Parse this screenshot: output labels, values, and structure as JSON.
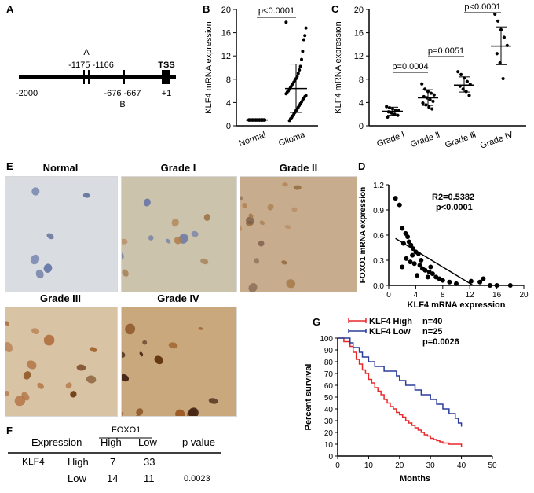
{
  "panels": {
    "A": "A",
    "B": "B",
    "C": "C",
    "D": "D",
    "E": "E",
    "F": "F",
    "G": "G"
  },
  "panel_a": {
    "site_a_label": "A",
    "site_a_range": "-1175 -1166",
    "site_b_range": "-676 -667",
    "site_b_label": "B",
    "tss_label": "TSS",
    "start_label": "-2000",
    "end_label": "+1"
  },
  "panel_e": {
    "titles": [
      "Normal",
      "Grade I",
      "Grade II",
      "Grade III",
      "Grade IV"
    ]
  },
  "panel_f": {
    "header_expression": "Expression",
    "header_group": "FOXO1",
    "header_pvalue": "p value",
    "col_high": "High",
    "col_low": "Low",
    "row_gene": "KLF4",
    "rows": [
      {
        "label": "High",
        "high": "7",
        "low": "33",
        "p": ""
      },
      {
        "label": "Low",
        "high": "14",
        "low": "11",
        "p": "0.0023"
      }
    ]
  },
  "chart_data": [
    {
      "id": "B",
      "type": "scatter",
      "ylabel": "KLF4 mRNA expression",
      "categories": [
        "Normal",
        "Glioma"
      ],
      "ylim": [
        0,
        20
      ],
      "yticks": [
        0,
        4,
        8,
        12,
        16,
        20
      ],
      "annotation": "p<0.0001",
      "series": [
        {
          "category": "Normal",
          "mean": 1.0,
          "sd_low": 1.0,
          "sd_high": 1.0,
          "points": [
            1,
            1,
            1,
            1,
            1,
            1,
            1,
            1,
            1,
            1,
            1,
            1,
            1,
            1,
            1,
            1,
            1,
            1,
            1,
            1,
            1,
            1,
            1,
            1,
            1,
            1,
            1,
            1,
            1,
            1
          ]
        },
        {
          "category": "Glioma",
          "mean": 6.4,
          "sd_low": 2.3,
          "sd_high": 10.6,
          "points": [
            17.8,
            16.8,
            15.5,
            14.8,
            12.8,
            11.4,
            10.2,
            9.6,
            9.0,
            8.5,
            8.1,
            7.8,
            7.5,
            7.2,
            6.9,
            6.6,
            6.3,
            6.0,
            5.8,
            5.5,
            5.2,
            5.0,
            4.7,
            4.4,
            4.1,
            3.8,
            3.5,
            3.2,
            2.9,
            2.6,
            2.3,
            2.0,
            1.7,
            1.4,
            1.2,
            0.9
          ]
        }
      ]
    },
    {
      "id": "C",
      "type": "scatter",
      "ylabel": "KLF4 mRNA expression",
      "categories": [
        "Grade Ⅰ",
        "Grade Ⅱ",
        "Grade Ⅲ",
        "Grade Ⅳ"
      ],
      "ylim": [
        0,
        20
      ],
      "yticks": [
        0,
        4,
        8,
        12,
        16,
        20
      ],
      "comparisons": [
        {
          "from": 0,
          "to": 1,
          "label": "p=0.0004"
        },
        {
          "from": 1,
          "to": 2,
          "label": "p=0.0051"
        },
        {
          "from": 2,
          "to": 3,
          "label": "p<0.0001"
        }
      ],
      "series": [
        {
          "category": "Grade Ⅰ",
          "mean": 2.5,
          "sd_low": 1.8,
          "sd_high": 3.2,
          "points": [
            3.3,
            3.1,
            2.9,
            2.7,
            2.6,
            2.4,
            2.2,
            2.0,
            1.8,
            1.5
          ]
        },
        {
          "category": "Grade Ⅱ",
          "mean": 4.8,
          "sd_low": 3.5,
          "sd_high": 6.2,
          "points": [
            7.2,
            6.3,
            5.9,
            5.6,
            5.3,
            5.0,
            4.8,
            4.5,
            4.2,
            3.9,
            3.6,
            3.2,
            2.9
          ]
        },
        {
          "category": "Grade Ⅲ",
          "mean": 7.0,
          "sd_low": 5.8,
          "sd_high": 8.4,
          "points": [
            9.3,
            8.8,
            8.2,
            7.6,
            7.1,
            6.8,
            6.3,
            5.9,
            5.2
          ]
        },
        {
          "category": "Grade Ⅳ",
          "mean": 13.7,
          "sd_low": 10.5,
          "sd_high": 17.0,
          "points": [
            19.2,
            18.0,
            16.5,
            15.2,
            13.8,
            12.4,
            10.8,
            8.1
          ]
        }
      ]
    },
    {
      "id": "D",
      "type": "scatter",
      "xlabel": "KLF4 mRNA expression",
      "ylabel": "FOXO1 mRNA expression",
      "xlim": [
        0,
        20
      ],
      "ylim": [
        0,
        1.2
      ],
      "xticks": [
        0,
        4,
        8,
        12,
        16,
        20
      ],
      "yticks": [
        0.0,
        0.3,
        0.6,
        0.9,
        1.2
      ],
      "annotation_r2": "R2=0.5382",
      "annotation_p": "p<0.0001",
      "fit_line": [
        [
          1.0,
          0.56
        ],
        [
          12.5,
          0.0
        ]
      ],
      "points": [
        [
          1.0,
          1.04
        ],
        [
          1.6,
          0.96
        ],
        [
          2.0,
          0.68
        ],
        [
          2.5,
          0.62
        ],
        [
          2.8,
          0.58
        ],
        [
          3.0,
          0.52
        ],
        [
          3.3,
          0.48
        ],
        [
          2.2,
          0.5
        ],
        [
          3.6,
          0.44
        ],
        [
          4.0,
          0.4
        ],
        [
          4.4,
          0.38
        ],
        [
          2.6,
          0.32
        ],
        [
          3.2,
          0.28
        ],
        [
          3.8,
          0.26
        ],
        [
          4.6,
          0.24
        ],
        [
          5.0,
          0.2
        ],
        [
          5.4,
          0.18
        ],
        [
          6.0,
          0.16
        ],
        [
          6.5,
          0.14
        ],
        [
          7.0,
          0.1
        ],
        [
          7.5,
          0.08
        ],
        [
          8.0,
          0.06
        ],
        [
          4.2,
          0.12
        ],
        [
          5.8,
          0.1
        ],
        [
          2.0,
          0.22
        ],
        [
          9.0,
          0.04
        ],
        [
          10.0,
          0.02
        ],
        [
          12.2,
          0.05
        ],
        [
          13.5,
          0.04
        ],
        [
          14.0,
          0.08
        ],
        [
          15.0,
          0.0
        ],
        [
          16.0,
          0.0
        ],
        [
          18.0,
          0.0
        ],
        [
          3.5,
          0.36
        ],
        [
          4.8,
          0.3
        ],
        [
          6.2,
          0.22
        ]
      ]
    },
    {
      "id": "G",
      "type": "line",
      "xlabel": "Months",
      "ylabel": "Percent survival",
      "xlim": [
        0,
        50
      ],
      "ylim": [
        0,
        100
      ],
      "xticks": [
        0,
        10,
        20,
        30,
        40,
        50
      ],
      "yticks": [
        0,
        10,
        20,
        30,
        40,
        50,
        60,
        70,
        80,
        90,
        100
      ],
      "annotation_p": "p=0.0026",
      "series": [
        {
          "name": "KLF4 High",
          "n_label": "n=40",
          "color": "#e8282b",
          "x": [
            0,
            2,
            4,
            5,
            6,
            7,
            8,
            9,
            10,
            11,
            12,
            13,
            14,
            15,
            16,
            17,
            18,
            19,
            20,
            21,
            22,
            23,
            24,
            25,
            26,
            27,
            28,
            29,
            30,
            31,
            32,
            33,
            34,
            36,
            38,
            40
          ],
          "y": [
            100,
            97,
            93,
            88,
            82,
            78,
            73,
            70,
            65,
            62,
            58,
            55,
            52,
            48,
            45,
            42,
            40,
            37,
            35,
            33,
            30,
            28,
            26,
            24,
            22,
            20,
            18,
            17,
            15,
            14,
            13,
            12,
            11,
            10,
            10,
            8
          ]
        },
        {
          "name": "KLF4  Low",
          "n_label": "n=25",
          "color": "#2b3c9c",
          "x": [
            0,
            4,
            5,
            7,
            8,
            10,
            12,
            14,
            15,
            17,
            19,
            20,
            22,
            24,
            25,
            27,
            28,
            30,
            32,
            34,
            36,
            38,
            39,
            40
          ],
          "y": [
            100,
            96,
            92,
            88,
            84,
            80,
            76,
            76,
            72,
            72,
            68,
            64,
            60,
            60,
            56,
            52,
            52,
            48,
            44,
            40,
            36,
            32,
            28,
            25
          ]
        }
      ]
    }
  ]
}
